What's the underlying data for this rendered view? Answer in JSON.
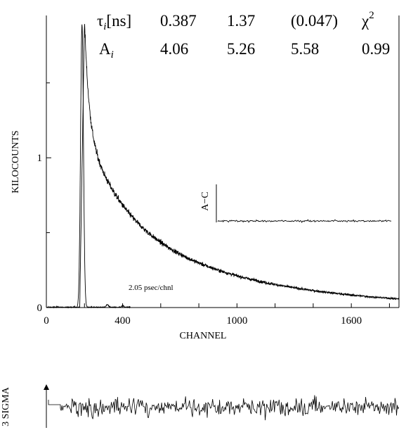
{
  "chart_data": [
    {
      "type": "line",
      "xlabel": "CHANNEL",
      "ylabel": "KILOCOUNTS",
      "xlim": [
        0,
        1850
      ],
      "ylim": [
        0,
        1.95
      ],
      "x_ticks": [
        0,
        400,
        1000,
        1600
      ],
      "y_ticks": [
        {
          "value": 0,
          "label": "0"
        },
        {
          "value": 1,
          "label": "1"
        }
      ],
      "annotation": "2.05 psec/chnl",
      "fit_table": {
        "tau_label": "τ",
        "tau_sub": "i",
        "tau_unit": "[ns]",
        "amp_label": "A",
        "amp_sub": "i",
        "chi_label": "χ",
        "chi_sup": "2",
        "tau_values": [
          "0.387",
          "1.37",
          "(0.047)"
        ],
        "amp_values": [
          "4.06",
          "5.26",
          "5.58"
        ],
        "chi_value": "0.99"
      },
      "series": [
        {
          "kind": "decay",
          "rise_start": 175,
          "peak_channel": 200,
          "peak_value": 1.92,
          "components": [
            {
              "tau_ns": 0.387,
              "amplitude": 4.06
            },
            {
              "tau_ns": 1.37,
              "amplitude": 5.26
            },
            {
              "tau_ns": 0.047,
              "amplitude": 5.58
            }
          ],
          "channel_width_ps": 2.05,
          "x_end": 1850
        },
        {
          "kind": "instrument_response",
          "peak_channel": 187,
          "peak_value": 1.89,
          "secondary_peaks": [
            {
              "x": 320,
              "value": 0.018
            },
            {
              "x": 400,
              "value": 0.01
            }
          ]
        }
      ],
      "inset": {
        "label": "A−C",
        "x_start": 900,
        "x_end": 1800
      }
    },
    {
      "type": "line",
      "ylabel": "3 SIGMA",
      "description_series": "weighted residuals",
      "x_start": 0,
      "x_end": 1850
    }
  ]
}
